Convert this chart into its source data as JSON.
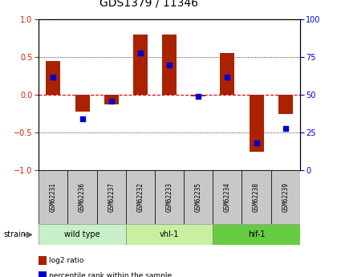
{
  "title": "GDS1379 / 11346",
  "samples": [
    "GSM62231",
    "GSM62236",
    "GSM62237",
    "GSM62232",
    "GSM62233",
    "GSM62235",
    "GSM62234",
    "GSM62238",
    "GSM62239"
  ],
  "log2_ratio": [
    0.45,
    -0.22,
    -0.13,
    0.8,
    0.8,
    -0.02,
    0.55,
    -0.75,
    -0.25
  ],
  "percentile_rank": [
    62,
    34,
    46,
    78,
    70,
    49,
    62,
    18,
    28
  ],
  "groups": [
    {
      "label": "wild type",
      "start": 0,
      "end": 3,
      "color": "#c8f0c8"
    },
    {
      "label": "vhl-1",
      "start": 3,
      "end": 6,
      "color": "#c8f0a0"
    },
    {
      "label": "hif-1",
      "start": 6,
      "end": 9,
      "color": "#66cc44"
    }
  ],
  "strain_label": "strain",
  "ylim_left": [
    -1,
    1
  ],
  "ylim_right": [
    0,
    100
  ],
  "yticks_left": [
    -1,
    -0.5,
    0,
    0.5,
    1
  ],
  "yticks_right": [
    0,
    25,
    50,
    75,
    100
  ],
  "bar_color": "#aa2200",
  "dot_color": "#0000cc",
  "zero_line_color": "#cc0000",
  "bar_width": 0.5,
  "dot_size": 22,
  "sample_box_color": "#c8c8c8",
  "legend_items": [
    {
      "label": "log2 ratio",
      "color": "#aa2200"
    },
    {
      "label": "percentile rank within the sample",
      "color": "#0000cc"
    }
  ]
}
